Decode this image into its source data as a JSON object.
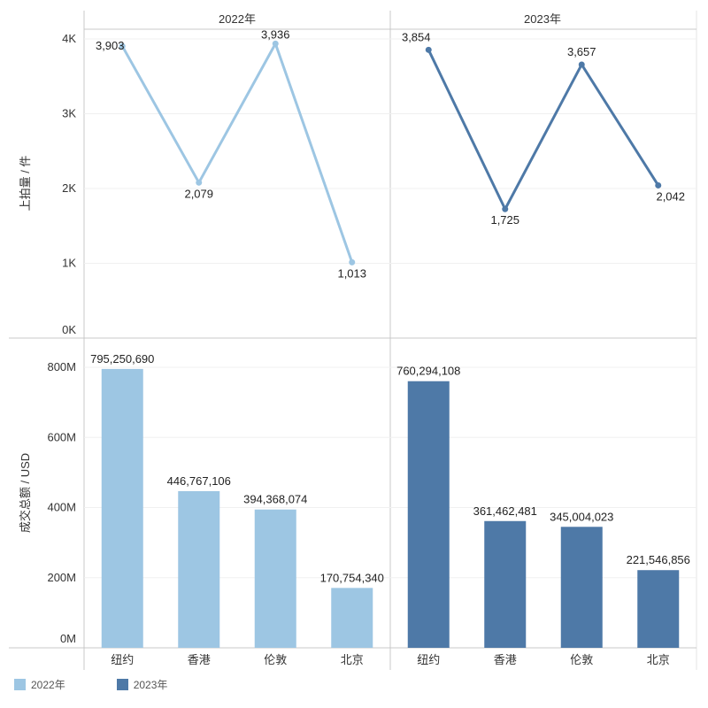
{
  "chart_data": [
    {
      "type": "line",
      "ylabel": "上拍量 / 件",
      "yticks": [
        "0K",
        "1K",
        "2K",
        "3K",
        "4K"
      ],
      "ylim": [
        0,
        4000
      ],
      "categories": [
        "纽约",
        "香港",
        "伦敦",
        "北京"
      ],
      "series": [
        {
          "name": "2022年",
          "values": [
            3903,
            2079,
            3936,
            1013
          ],
          "labels": [
            "3,903",
            "2,079",
            "3,936",
            "1,013"
          ]
        },
        {
          "name": "2023年",
          "values": [
            3854,
            1725,
            3657,
            2042
          ],
          "labels": [
            "3,854",
            "1,725",
            "3,657",
            "2,042"
          ]
        }
      ]
    },
    {
      "type": "bar",
      "ylabel": "成交总额 / USD",
      "yticks": [
        "0M",
        "200M",
        "400M",
        "600M",
        "800M"
      ],
      "ylim": [
        0,
        880000000
      ],
      "categories": [
        "纽约",
        "香港",
        "伦敦",
        "北京"
      ],
      "series": [
        {
          "name": "2022年",
          "values": [
            795250690,
            446767106,
            394368074,
            170754340
          ],
          "labels": [
            "795,250,690",
            "446,767,106",
            "394,368,074",
            "170,754,340"
          ]
        },
        {
          "name": "2023年",
          "values": [
            760294108,
            361462481,
            345004023,
            221546856
          ],
          "labels": [
            "760,294,108",
            "361,462,481",
            "345,004,023",
            "221,546,856"
          ]
        }
      ]
    }
  ],
  "panels": [
    "2022年",
    "2023年"
  ],
  "legend": [
    {
      "label": "2022年",
      "color": "#9dc6e3"
    },
    {
      "label": "2023年",
      "color": "#4e79a7"
    }
  ],
  "colors": {
    "2022年": "#9dc6e3",
    "2023年": "#4e79a7"
  }
}
